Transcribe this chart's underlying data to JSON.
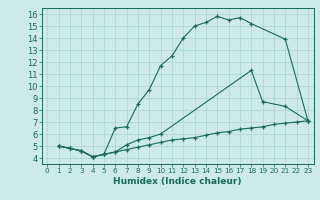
{
  "title": "",
  "xlabel": "Humidex (Indice chaleur)",
  "bg_color": "#cceae8",
  "line_color": "#1a6b5a",
  "grid_color": "#aad4d0",
  "xlim": [
    -0.5,
    23.5
  ],
  "ylim": [
    3.5,
    16.5
  ],
  "xticks": [
    0,
    1,
    2,
    3,
    4,
    5,
    6,
    7,
    8,
    9,
    10,
    11,
    12,
    13,
    14,
    15,
    16,
    17,
    18,
    19,
    20,
    21,
    22,
    23
  ],
  "yticks": [
    4,
    5,
    6,
    7,
    8,
    9,
    10,
    11,
    12,
    13,
    14,
    15,
    16
  ],
  "curve1_x": [
    1,
    2,
    3,
    4,
    5,
    6,
    7,
    8,
    9,
    10,
    11,
    12,
    13,
    14,
    15,
    16,
    17,
    18,
    21,
    23
  ],
  "curve1_y": [
    5.0,
    4.8,
    4.6,
    4.1,
    4.3,
    6.5,
    6.6,
    8.5,
    9.7,
    11.7,
    12.5,
    14.0,
    15.0,
    15.3,
    15.8,
    15.5,
    15.7,
    15.2,
    13.9,
    7.1
  ],
  "curve2_x": [
    1,
    2,
    3,
    4,
    5,
    6,
    7,
    8,
    9,
    10,
    18,
    19,
    21,
    23
  ],
  "curve2_y": [
    5.0,
    4.8,
    4.6,
    4.1,
    4.3,
    4.5,
    5.1,
    5.5,
    5.7,
    6.0,
    11.3,
    8.7,
    8.3,
    7.1
  ],
  "curve3_x": [
    1,
    2,
    3,
    4,
    5,
    6,
    7,
    8,
    9,
    10,
    11,
    12,
    13,
    14,
    15,
    16,
    17,
    18,
    19,
    20,
    21,
    22,
    23
  ],
  "curve3_y": [
    5.0,
    4.8,
    4.6,
    4.1,
    4.3,
    4.5,
    4.7,
    4.9,
    5.1,
    5.3,
    5.5,
    5.6,
    5.7,
    5.9,
    6.1,
    6.2,
    6.4,
    6.5,
    6.6,
    6.8,
    6.9,
    7.0,
    7.1
  ]
}
